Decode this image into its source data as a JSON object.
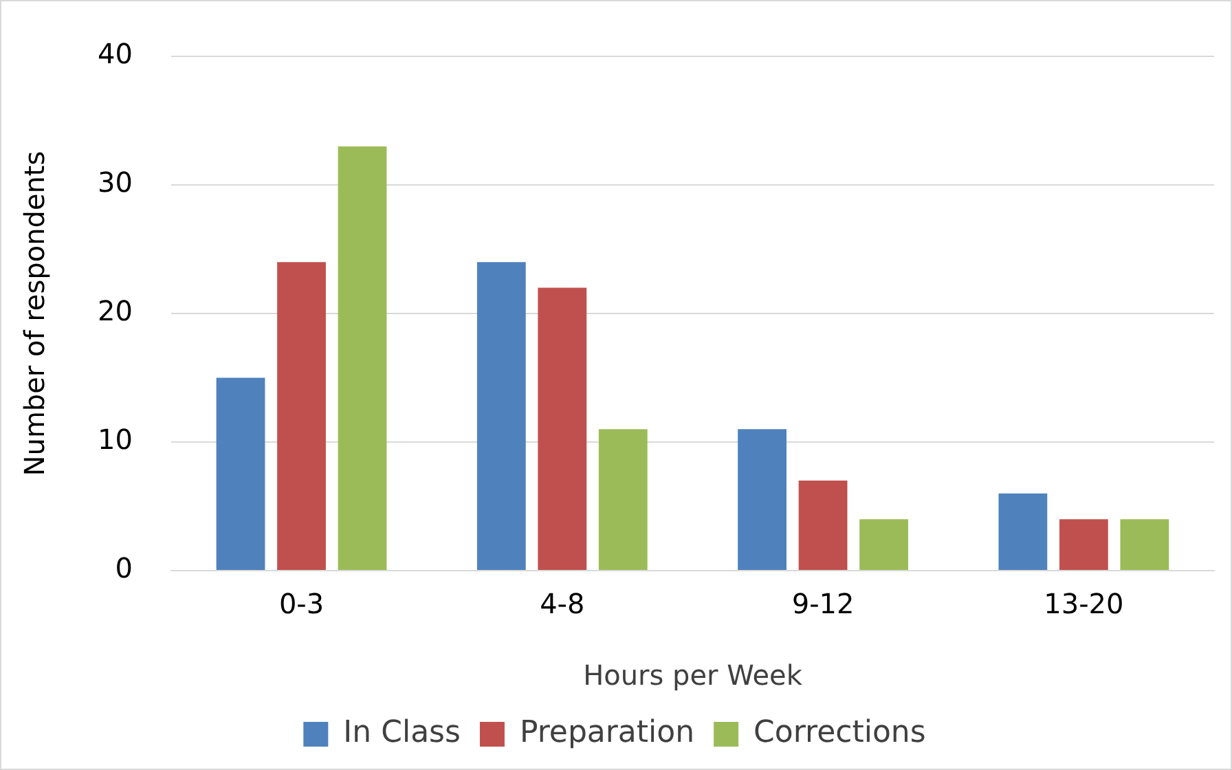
{
  "chart_data": {
    "type": "bar",
    "xlabel": "Hours per Week",
    "ylabel": "Number of respondents",
    "categories": [
      "0-3",
      "4-8",
      "9-12",
      "13-20"
    ],
    "series": [
      {
        "name": "In Class",
        "color": "#4f81bd",
        "values": [
          15,
          24,
          11,
          6
        ]
      },
      {
        "name": "Preparation",
        "color": "#c0504d",
        "values": [
          24,
          22,
          7,
          4
        ]
      },
      {
        "name": "Corrections",
        "color": "#9bbb59",
        "values": [
          33,
          11,
          4,
          4
        ]
      }
    ],
    "ylim": [
      0,
      40
    ],
    "yticks": [
      0,
      10,
      20,
      30,
      40
    ],
    "grid": "y",
    "legend": "bottom"
  }
}
